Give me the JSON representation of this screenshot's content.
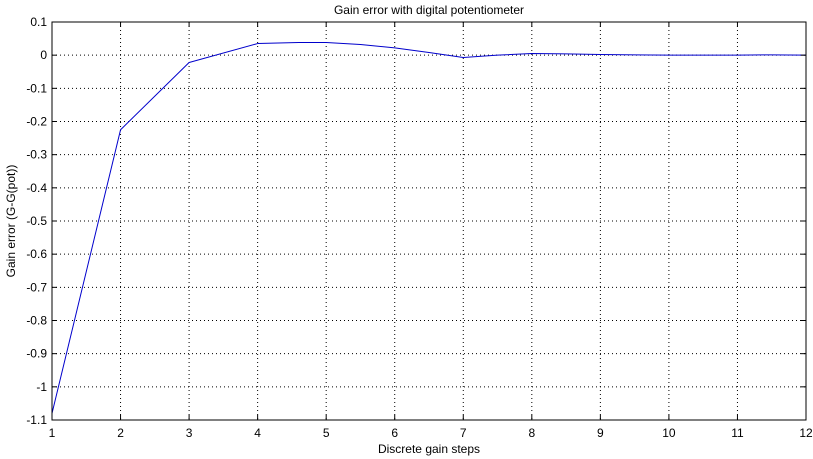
{
  "chart_data": {
    "type": "line",
    "title": "Gain error with digital potentiometer",
    "xlabel": "Discrete gain steps",
    "ylabel": "Gain error (G-G(pot))",
    "xlim": [
      1,
      12
    ],
    "ylim": [
      -1.1,
      0.1
    ],
    "xticks": [
      "1",
      "2",
      "3",
      "4",
      "5",
      "6",
      "7",
      "8",
      "9",
      "10",
      "11",
      "12"
    ],
    "yticks": [
      "0.1",
      "0",
      "-0.1",
      "-0.2",
      "-0.3",
      "-0.4",
      "-0.5",
      "-0.6",
      "-0.7",
      "-0.8",
      "-0.9",
      "-1",
      "-1.1"
    ],
    "grid": true,
    "series": [
      {
        "color": "#0000cc",
        "points": [
          [
            1,
            -1.08
          ],
          [
            2,
            -0.225
          ],
          [
            3,
            -0.022
          ],
          [
            4,
            0.035
          ],
          [
            4.6,
            0.038
          ],
          [
            5,
            0.038
          ],
          [
            5.5,
            0.032
          ],
          [
            6,
            0.022
          ],
          [
            6.5,
            0.008
          ],
          [
            7,
            -0.007
          ],
          [
            7.5,
            0.0
          ],
          [
            8,
            0.005
          ],
          [
            8.5,
            0.004
          ],
          [
            9,
            0.002
          ],
          [
            10,
            0.0
          ],
          [
            11,
            0.0
          ],
          [
            11.5,
            0.001
          ],
          [
            12,
            0.0
          ]
        ]
      }
    ]
  }
}
